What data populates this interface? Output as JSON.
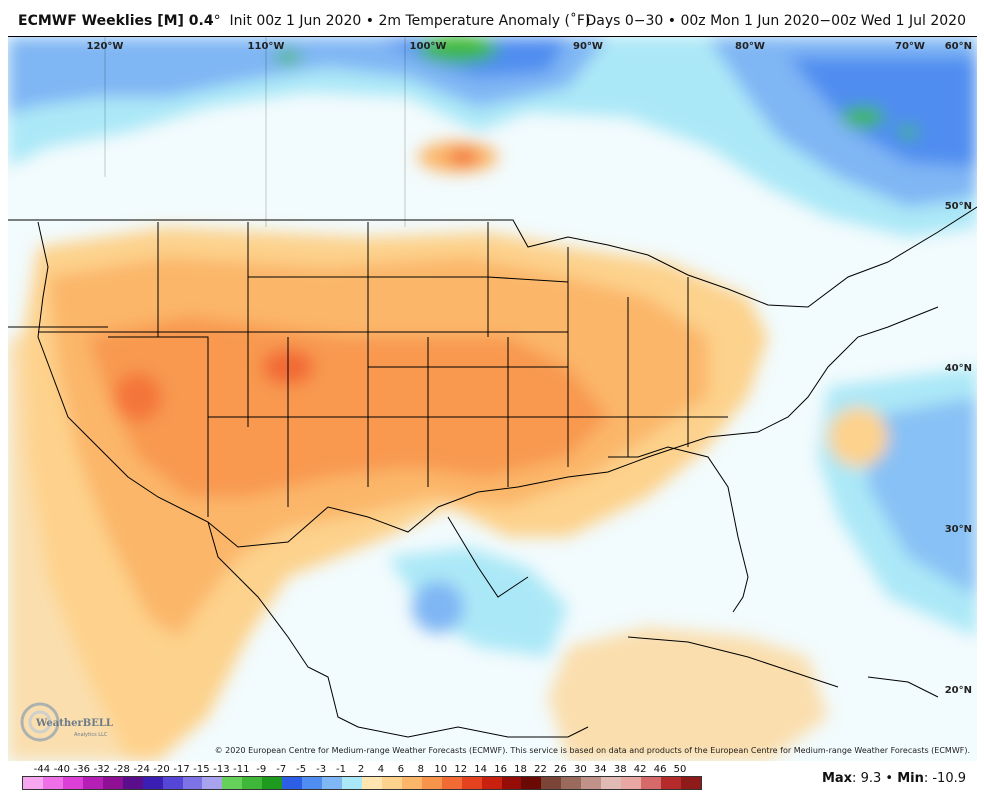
{
  "header": {
    "product": "ECMWF Weeklies [M] 0.4",
    "degree_mark": "°",
    "init": "Init 00z 1 Jun 2020",
    "bullet": "•",
    "field": "2m Temperature Anomaly (˚F)",
    "valid": "Days 0−30 • 00z Mon 1 Jun 2020−00z Wed 1 Jul 2020"
  },
  "longitude_labels": [
    "120°W",
    "110°W",
    "100°W",
    "90°W",
    "80°W",
    "70°W"
  ],
  "latitude_labels": [
    "60°N",
    "50°N",
    "40°N",
    "30°N",
    "20°N"
  ],
  "credit": "© 2020 European Centre for Medium-range Weather Forecasts (ECMWF). This service is based on data and products of the European Centre for Medium-range Weather Forecasts (ECMWF).",
  "logo": {
    "text": "WeatherBELL",
    "sub": "Analytics LLC"
  },
  "colorbar": {
    "labels": [
      "-44",
      "-40",
      "-36",
      "-32",
      "-28",
      "-24",
      "-20",
      "-17",
      "-15",
      "-13",
      "-11",
      "-9",
      "-7",
      "-5",
      "-3",
      "-1",
      "2",
      "4",
      "6",
      "8",
      "10",
      "12",
      "14",
      "16",
      "18",
      "22",
      "26",
      "30",
      "34",
      "38",
      "42",
      "46",
      "50"
    ],
    "colors": [
      "#f7a6f0",
      "#ef6fe6",
      "#dc3fd6",
      "#b61fb5",
      "#8f0f95",
      "#5a0e8c",
      "#3b1fb4",
      "#5646d8",
      "#7d73e6",
      "#a8a2ef",
      "#66d15a",
      "#3fb83a",
      "#1e9a1e",
      "#2d5ee6",
      "#4f8df0",
      "#7fb6f4",
      "#abe8f7",
      "#ffe6b0",
      "#fdd28c",
      "#fbb669",
      "#f7944c",
      "#f26b34",
      "#e5421f",
      "#c8210f",
      "#960d08",
      "#6b0a05",
      "#7a4436",
      "#9a6a5c",
      "#c0928a",
      "#e0bab4",
      "#e9a7a4",
      "#d66a6a",
      "#b52b2b",
      "#8f1a1a"
    ]
  },
  "stats": {
    "max_label": "Max",
    "max_value": "9.3",
    "min_label": "Min",
    "min_value": "-10.9"
  }
}
